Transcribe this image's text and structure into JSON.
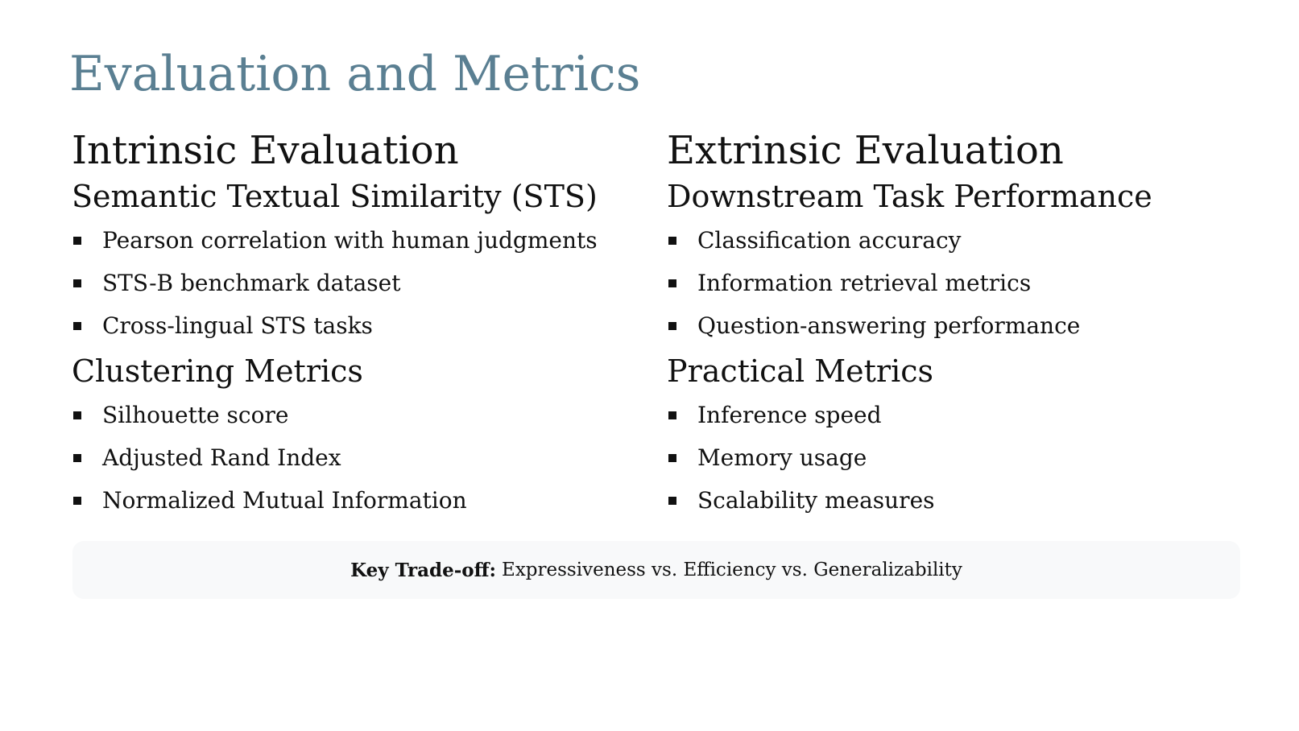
{
  "slide": {
    "title": "Evaluation and Metrics",
    "accent_color": "#5a7f92",
    "left": {
      "heading": "Intrinsic Evaluation",
      "sections": [
        {
          "subheading": "Semantic Textual Similarity (STS)",
          "items": [
            "Pearson correlation with human judgments",
            "STS-B benchmark dataset",
            "Cross-lingual STS tasks"
          ]
        },
        {
          "subheading": "Clustering Metrics",
          "items": [
            "Silhouette score",
            "Adjusted Rand Index",
            "Normalized Mutual Information"
          ]
        }
      ]
    },
    "right": {
      "heading": "Extrinsic Evaluation",
      "sections": [
        {
          "subheading": "Downstream Task Performance",
          "items": [
            "Classification accuracy",
            "Information retrieval metrics",
            "Question-answering performance"
          ]
        },
        {
          "subheading": "Practical Metrics",
          "items": [
            "Inference speed",
            "Memory usage",
            "Scalability measures"
          ]
        }
      ]
    },
    "tradeoff": {
      "label": "Key Trade-off:",
      "text": "Expressiveness vs. Efficiency vs. Generalizability"
    }
  }
}
